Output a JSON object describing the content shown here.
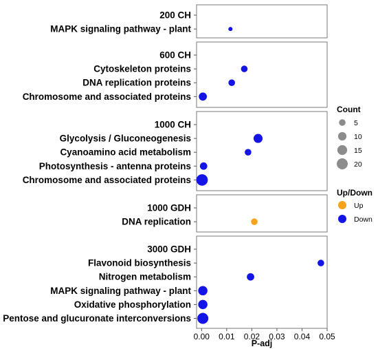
{
  "chart_data": {
    "type": "scatter",
    "xlabel": "P-adj",
    "xlim": [
      -0.002,
      0.05
    ],
    "xticks": [
      0.0,
      0.01,
      0.02,
      0.03,
      0.04,
      0.05
    ],
    "xtick_labels": [
      "0.00",
      "0.01",
      "0.02",
      "0.03",
      "0.04",
      "0.05"
    ],
    "grid": true,
    "legend_placement": "right",
    "groups": [
      {
        "name": "200 CH",
        "terms": [
          {
            "label": "MAPK signaling pathway - plant",
            "p": 0.0115,
            "count": 1,
            "dir": "Down"
          }
        ]
      },
      {
        "name": "600 CH",
        "terms": [
          {
            "label": "Cytoskeleton proteins",
            "p": 0.017,
            "count": 5,
            "dir": "Down"
          },
          {
            "label": "DNA replication proteins",
            "p": 0.012,
            "count": 5,
            "dir": "Down"
          },
          {
            "label": "Chromosome and associated proteins",
            "p": 0.0005,
            "count": 9,
            "dir": "Down"
          }
        ]
      },
      {
        "name": "1000 CH",
        "terms": [
          {
            "label": "Glycolysis / Gluconeogenesis",
            "p": 0.0225,
            "count": 12,
            "dir": "Down"
          },
          {
            "label": "Cyanoamino acid metabolism",
            "p": 0.0185,
            "count": 5,
            "dir": "Down"
          },
          {
            "label": "Photosynthesis - antenna proteins",
            "p": 0.0008,
            "count": 7,
            "dir": "Down"
          },
          {
            "label": "Chromosome and associated proteins",
            "p": 0.0002,
            "count": 22,
            "dir": "Down"
          }
        ]
      },
      {
        "name": "1000 GDH",
        "terms": [
          {
            "label": "DNA replication",
            "p": 0.021,
            "count": 5,
            "dir": "Up"
          }
        ]
      },
      {
        "name": "3000 GDH",
        "terms": [
          {
            "label": "Flavonoid biosynthesis",
            "p": 0.0475,
            "count": 5,
            "dir": "Down"
          },
          {
            "label": "Nitrogen metabolism",
            "p": 0.0195,
            "count": 7,
            "dir": "Down"
          },
          {
            "label": "MAPK signaling pathway - plant",
            "p": 0.0005,
            "count": 13,
            "dir": "Down"
          },
          {
            "label": "Oxidative phosphorylation",
            "p": 0.0005,
            "count": 13,
            "dir": "Down"
          },
          {
            "label": "Pentose and glucuronate interconversions",
            "p": 0.0005,
            "count": 20,
            "dir": "Down"
          }
        ]
      }
    ],
    "legend_count": {
      "title": "Count",
      "values": [
        5,
        10,
        15,
        20
      ],
      "labels": [
        "5",
        "10",
        "15",
        "20"
      ]
    },
    "legend_dir": {
      "title": "Up/Down",
      "items": [
        {
          "label": "Up",
          "color": "#F5A31A"
        },
        {
          "label": "Down",
          "color": "#1414E6"
        }
      ]
    },
    "count_marker_color": "#8C8C8C"
  }
}
